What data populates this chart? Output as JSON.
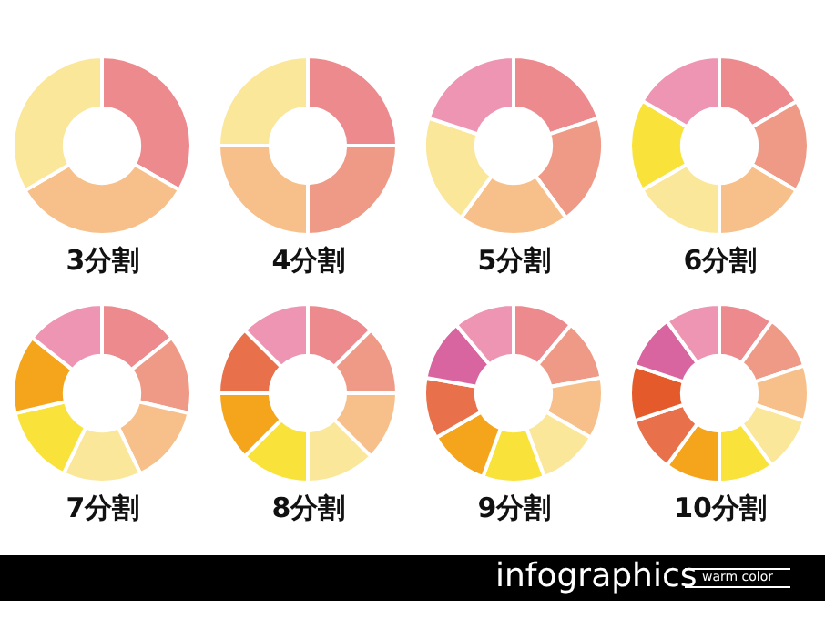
{
  "chart_data": [
    {
      "type": "donut",
      "title": "3分割",
      "categories": [
        null,
        null,
        null
      ],
      "values": [
        33.3,
        33.3,
        33.4
      ],
      "colors": [
        "#ec8a8e",
        "#f7c08a",
        "#fbe79a"
      ]
    },
    {
      "type": "donut",
      "title": "4分割",
      "categories": [
        null,
        null,
        null,
        null
      ],
      "values": [
        25,
        25,
        25,
        25
      ],
      "colors": [
        "#ec8a8e",
        "#ef9a86",
        "#f7c08a",
        "#fbe79a"
      ]
    },
    {
      "type": "donut",
      "title": "5分割",
      "categories": [
        null,
        null,
        null,
        null,
        null
      ],
      "values": [
        20,
        20,
        20,
        20,
        20
      ],
      "colors": [
        "#ec8a8e",
        "#ef9a86",
        "#f7c08a",
        "#fbe79a",
        "#ee95b3"
      ]
    },
    {
      "type": "donut",
      "title": "6分割",
      "categories": [
        null,
        null,
        null,
        null,
        null,
        null
      ],
      "values": [
        16.7,
        16.7,
        16.6,
        16.7,
        16.7,
        16.6
      ],
      "colors": [
        "#ec8a8e",
        "#ef9a86",
        "#f7c08a",
        "#fbe79a",
        "#f9e33a",
        "#ee95b3"
      ]
    },
    {
      "type": "donut",
      "title": "7分割",
      "categories": [
        null,
        null,
        null,
        null,
        null,
        null,
        null
      ],
      "values": [
        14.3,
        14.3,
        14.3,
        14.2,
        14.3,
        14.3,
        14.3
      ],
      "colors": [
        "#ec8a8e",
        "#ef9a86",
        "#f7c08a",
        "#fbe79a",
        "#f9e33a",
        "#f4a51c",
        "#ee95b3"
      ]
    },
    {
      "type": "donut",
      "title": "8分割",
      "categories": [
        null,
        null,
        null,
        null,
        null,
        null,
        null,
        null
      ],
      "values": [
        12.5,
        12.5,
        12.5,
        12.5,
        12.5,
        12.5,
        12.5,
        12.5
      ],
      "colors": [
        "#ec8a8e",
        "#ef9a86",
        "#f7c08a",
        "#fbe79a",
        "#f9e33a",
        "#f4a51c",
        "#e8704a",
        "#ee95b3"
      ]
    },
    {
      "type": "donut",
      "title": "9分割",
      "categories": [
        null,
        null,
        null,
        null,
        null,
        null,
        null,
        null,
        null
      ],
      "values": [
        11.1,
        11.1,
        11.1,
        11.1,
        11.2,
        11.1,
        11.1,
        11.1,
        11.1
      ],
      "colors": [
        "#ec8a8e",
        "#ef9a86",
        "#f7c08a",
        "#fbe79a",
        "#f9e33a",
        "#f4a51c",
        "#e8704a",
        "#d965a0",
        "#ee95b3"
      ]
    },
    {
      "type": "donut",
      "title": "10分割",
      "categories": [
        null,
        null,
        null,
        null,
        null,
        null,
        null,
        null,
        null,
        null
      ],
      "values": [
        10,
        10,
        10,
        10,
        10,
        10,
        10,
        10,
        10,
        10
      ],
      "colors": [
        "#ec8a8e",
        "#ef9a86",
        "#f7c08a",
        "#fbe79a",
        "#f9e33a",
        "#f4a51c",
        "#e8704a",
        "#e55a2b",
        "#d965a0",
        "#ee95b3"
      ]
    },
    {
      "type": "other",
      "title": "infographics",
      "annotations": [
        "warm color"
      ]
    }
  ]
}
